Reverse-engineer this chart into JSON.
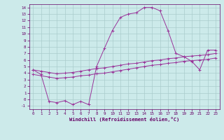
{
  "background_color": "#cceaea",
  "grid_color": "#aacccc",
  "line_color": "#993399",
  "xlabel": "Windchill (Refroidissement éolien,°C)",
  "xlabel_color": "#660066",
  "tick_color": "#660066",
  "xlim": [
    -0.5,
    23.5
  ],
  "ylim": [
    -1.5,
    14.5
  ],
  "xticks": [
    0,
    1,
    2,
    3,
    4,
    5,
    6,
    7,
    8,
    9,
    10,
    11,
    12,
    13,
    14,
    15,
    16,
    17,
    18,
    19,
    20,
    21,
    22,
    23
  ],
  "yticks": [
    -1,
    0,
    1,
    2,
    3,
    4,
    5,
    6,
    7,
    8,
    9,
    10,
    11,
    12,
    13,
    14
  ],
  "line1_x": [
    0,
    1,
    2,
    3,
    4,
    5,
    6,
    7,
    8,
    9,
    10,
    11,
    12,
    13,
    14,
    15,
    16,
    17,
    18,
    19,
    20,
    21,
    22,
    23
  ],
  "line1_y": [
    4.5,
    4.3,
    4.1,
    3.9,
    4.0,
    4.1,
    4.3,
    4.5,
    4.7,
    4.8,
    5.0,
    5.2,
    5.4,
    5.5,
    5.7,
    5.9,
    6.0,
    6.2,
    6.3,
    6.5,
    6.6,
    6.7,
    6.8,
    7.0
  ],
  "line2_x": [
    0,
    1,
    2,
    3,
    4,
    5,
    6,
    7,
    8,
    9,
    10,
    11,
    12,
    13,
    14,
    15,
    16,
    17,
    18,
    19,
    20,
    21,
    22,
    23
  ],
  "line2_y": [
    3.8,
    3.6,
    3.4,
    3.2,
    3.3,
    3.4,
    3.6,
    3.7,
    3.9,
    4.0,
    4.2,
    4.4,
    4.6,
    4.8,
    5.0,
    5.2,
    5.3,
    5.5,
    5.6,
    5.8,
    5.9,
    6.0,
    6.1,
    6.3
  ],
  "line3_x": [
    0,
    1,
    2,
    3,
    4,
    5,
    6,
    7,
    8,
    9,
    10,
    11,
    12,
    13,
    14,
    15,
    16,
    17,
    18,
    19,
    20,
    21,
    22,
    23
  ],
  "line3_y": [
    4.5,
    3.8,
    -0.3,
    -0.5,
    -0.2,
    -0.8,
    -0.3,
    -0.8,
    5.0,
    7.8,
    10.5,
    12.5,
    13.0,
    13.2,
    14.0,
    14.0,
    13.5,
    10.5,
    7.0,
    6.5,
    5.8,
    4.5,
    7.5,
    7.5
  ]
}
